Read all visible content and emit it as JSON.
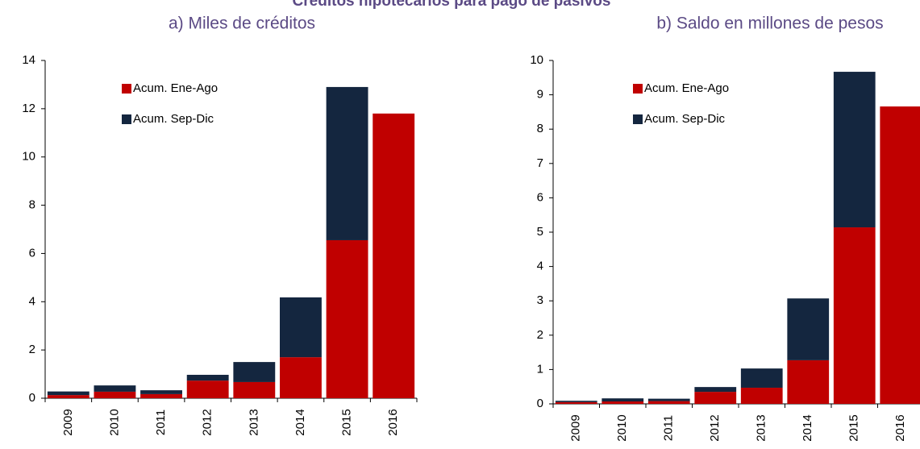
{
  "title": "Créditos hipotecarios para pago de pasivos",
  "chart_data": [
    {
      "type": "stacked-bar",
      "subtitle": "a) Miles de créditos",
      "categories": [
        "2009",
        "2010",
        "2011",
        "2012",
        "2013",
        "2014",
        "2015",
        "2016"
      ],
      "series": [
        {
          "name": "Acum. Ene-Ago",
          "color": "#c00000",
          "values": [
            0.13,
            0.27,
            0.17,
            0.73,
            0.67,
            1.7,
            6.55,
            11.8
          ]
        },
        {
          "name": "Acum. Sep-Dic",
          "color": "#14263f",
          "values": [
            0.15,
            0.26,
            0.16,
            0.24,
            0.83,
            2.48,
            6.35,
            null
          ]
        }
      ],
      "ylim": [
        0,
        14
      ],
      "yticks": [
        0,
        2,
        4,
        6,
        8,
        10,
        12,
        14
      ],
      "legend": "upper left"
    },
    {
      "type": "stacked-bar",
      "subtitle": "b) Saldo en millones de pesos",
      "categories": [
        "2009",
        "2010",
        "2011",
        "2012",
        "2013",
        "2014",
        "2015",
        "2016"
      ],
      "series": [
        {
          "name": "Acum. Ene-Ago",
          "color": "#c00000",
          "values": [
            0.05,
            0.07,
            0.08,
            0.35,
            0.47,
            1.27,
            5.14,
            8.66
          ]
        },
        {
          "name": "Acum. Sep-Dic",
          "color": "#14263f",
          "values": [
            0.04,
            0.09,
            0.07,
            0.14,
            0.56,
            1.8,
            4.53,
            null
          ]
        }
      ],
      "ylim": [
        0,
        10
      ],
      "yticks": [
        0,
        1,
        2,
        3,
        4,
        5,
        6,
        7,
        8,
        9,
        10
      ],
      "legend": "upper left"
    }
  ]
}
